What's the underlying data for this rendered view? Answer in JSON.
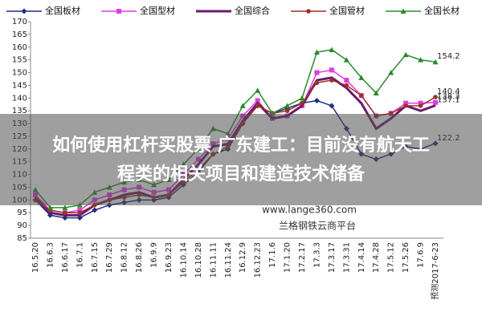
{
  "chart_data": {
    "type": "line",
    "categories": [
      "16.5.20",
      "16.6.3",
      "16.6.17",
      "16.7.1",
      "16.7.15",
      "16.7.29",
      "16.8.12",
      "16.8.26",
      "16.9.9",
      "16.9.23",
      "16.10.14",
      "16.10.28",
      "16.11.11",
      "16.11.24",
      "16.12.9",
      "16.12.23",
      "17.1.6",
      "17.1.20",
      "17.2.17",
      "17.3.3",
      "17.3.17",
      "17.3.31",
      "17.4.14",
      "17.4.28",
      "17.5.12",
      "17.5.26",
      "17.6.9",
      "预测2017-6-23"
    ],
    "series": [
      {
        "name": "全国板材",
        "color": "#1f2f80",
        "marker": "diamond",
        "values": [
          100,
          94,
          93,
          93,
          96,
          98,
          99,
          100,
          100,
          101,
          106,
          111,
          118,
          120,
          130,
          137,
          134,
          136,
          138,
          139,
          137,
          128,
          118,
          116,
          118,
          121,
          120,
          122.2
        ]
      },
      {
        "name": "全国型材",
        "color": "#e03ce0",
        "marker": "square",
        "values": [
          102,
          96,
          95,
          96,
          100,
          102,
          104,
          105,
          103,
          104,
          110,
          116,
          122,
          124,
          133,
          139,
          132,
          133,
          137,
          150,
          151,
          147,
          141,
          133,
          134,
          138,
          138,
          138.3
        ]
      },
      {
        "name": "全国综合",
        "color": "#6a1b6a",
        "marker": "none",
        "values": [
          101,
          95,
          94,
          94,
          98,
          100,
          102,
          103,
          101,
          102,
          108,
          114,
          121,
          122,
          131,
          138,
          132,
          133,
          137,
          147,
          148,
          144,
          138,
          128,
          132,
          137,
          135,
          137.1
        ]
      },
      {
        "name": "全国管材",
        "color": "#a0302a",
        "marker": "circle",
        "values": [
          100,
          96,
          95,
          95,
          98,
          100,
          101,
          102,
          101,
          102,
          107,
          112,
          118,
          121,
          130,
          137,
          134,
          135,
          138,
          146,
          147,
          145,
          141,
          133,
          134,
          137,
          137,
          140.4
        ]
      },
      {
        "name": "全国长材",
        "color": "#2a8a2a",
        "marker": "triangle",
        "values": [
          104,
          97,
          97,
          98,
          103,
          105,
          107,
          108,
          106,
          108,
          114,
          120,
          128,
          126,
          137,
          143,
          134,
          137,
          140,
          158,
          159,
          155,
          148,
          142,
          150,
          157,
          155,
          154.2
        ]
      }
    ],
    "ylim": [
      85,
      170
    ],
    "yticks": [
      85,
      90,
      95,
      100,
      105,
      110,
      115,
      120,
      125,
      130,
      135,
      140,
      145,
      150,
      155,
      160,
      165,
      170
    ]
  },
  "watermark": [
    "www.lange360.com",
    "兰格钢铁云商平台"
  ],
  "overlay": [
    "如何使用杠杆买股票 广东建工：目前没有航天工",
    "程类的相关项目和建造技术储备"
  ]
}
